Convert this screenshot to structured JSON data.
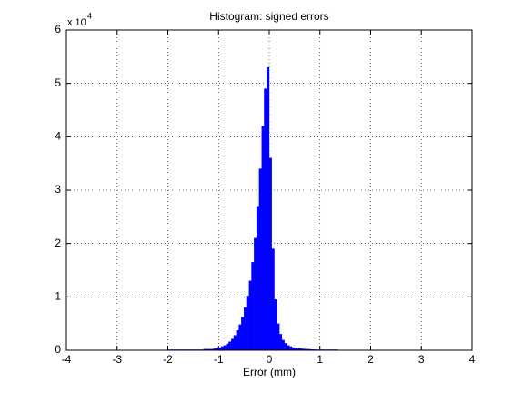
{
  "chart_data": {
    "type": "histogram",
    "title": "Histogram: signed errors",
    "xlabel": "Error (mm)",
    "y_scale_label": "x 10",
    "y_scale_exponent": "4",
    "bins": [
      -2,
      -1.95,
      -1.9,
      -1.85,
      -1.8,
      -1.75,
      -1.7,
      -1.65,
      -1.6,
      -1.55,
      -1.5,
      -1.45,
      -1.4,
      -1.35,
      -1.3,
      -1.25,
      -1.2,
      -1.15,
      -1.1,
      -1.05,
      -1,
      -0.95,
      -0.9,
      -0.85,
      -0.8,
      -0.75,
      -0.7,
      -0.65,
      -0.6,
      -0.55,
      -0.5,
      -0.45,
      -0.4,
      -0.35,
      -0.3,
      -0.25,
      -0.2,
      -0.15,
      -0.1,
      -0.05,
      0,
      0.05,
      0.1,
      0.15,
      0.2,
      0.25,
      0.3,
      0.35,
      0.4,
      0.45,
      0.5,
      0.55,
      0.6,
      0.65,
      0.7,
      0.75,
      0.8,
      0.85,
      0.9,
      0.95,
      1,
      1.05,
      1.1,
      1.15,
      1.2,
      1.25,
      1.3,
      1.35
    ],
    "values": [
      0.01,
      0.01,
      0.01,
      0.01,
      0.01,
      0.01,
      0.01,
      0.01,
      0.01,
      0.01,
      0.01,
      0.01,
      0.01,
      0.01,
      0.02,
      0.02,
      0.02,
      0.02,
      0.03,
      0.04,
      0.05,
      0.07,
      0.09,
      0.12,
      0.16,
      0.21,
      0.28,
      0.37,
      0.48,
      0.62,
      0.8,
      1.02,
      1.3,
      1.65,
      2.1,
      2.7,
      3.4,
      4.2,
      4.9,
      5.3,
      3.6,
      1.9,
      0.95,
      0.5,
      0.3,
      0.19,
      0.13,
      0.09,
      0.07,
      0.05,
      0.04,
      0.035,
      0.03,
      0.025,
      0.02,
      0.02,
      0.015,
      0.015,
      0.01,
      0.01,
      0.01,
      0.01,
      0.01,
      0.01,
      0.01,
      0.01,
      0.01
    ],
    "color": "#0000ff",
    "xlim": [
      -4,
      4
    ],
    "ylim": [
      0,
      6
    ],
    "xticks": [
      -4,
      -3,
      -2,
      -1,
      0,
      1,
      2,
      3,
      4
    ],
    "yticks": [
      0,
      1,
      2,
      3,
      4,
      5,
      6
    ],
    "grid": true
  }
}
